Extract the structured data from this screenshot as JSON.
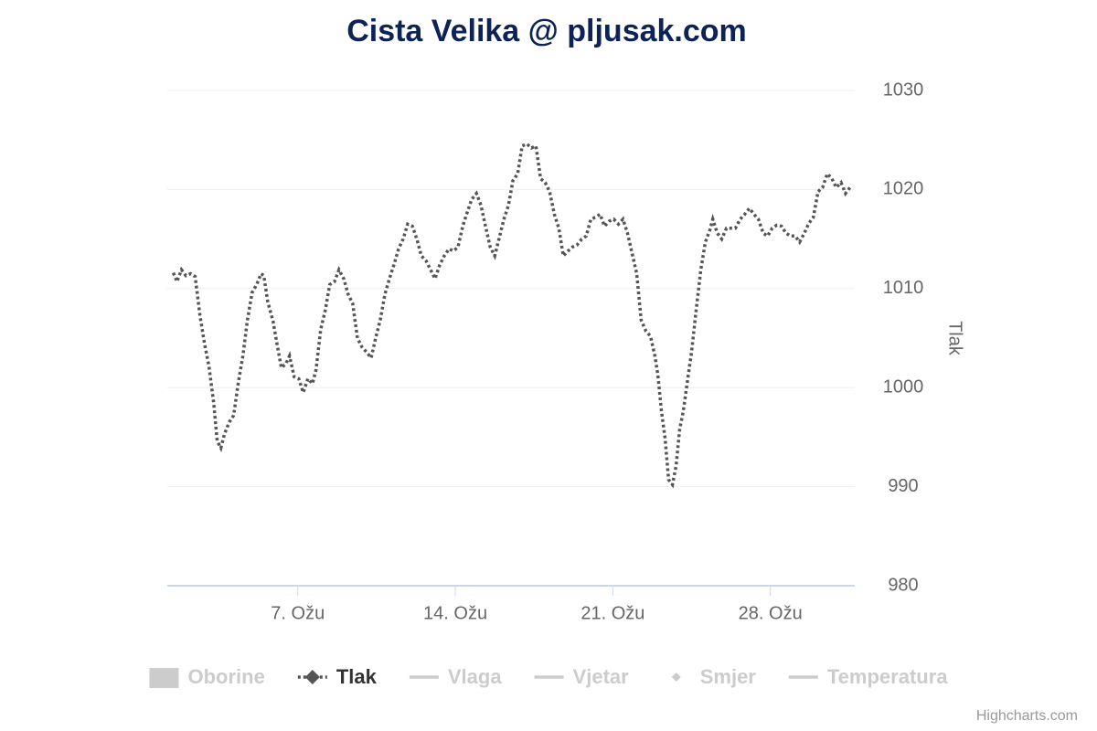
{
  "chart_data": {
    "type": "line",
    "title": "Cista Velika @ pljusak.com",
    "y_axis_title": "Tlak",
    "credits": "Highcharts.com",
    "xlim": [
      1.2,
      31.75
    ],
    "xticks": [
      {
        "value": 7,
        "label": "7. Ožu"
      },
      {
        "value": 14,
        "label": "14. Ožu"
      },
      {
        "value": 21,
        "label": "21. Ožu"
      },
      {
        "value": 28,
        "label": "28. Ožu"
      }
    ],
    "ylim": [
      980,
      1030
    ],
    "yticks": [
      980,
      990,
      1000,
      1010,
      1020,
      1030
    ],
    "grid": true,
    "x": [
      1.47,
      1.63,
      1.83,
      2.03,
      2.24,
      2.44,
      2.65,
      2.85,
      3.05,
      3.26,
      3.42,
      3.58,
      3.74,
      3.95,
      4.15,
      4.35,
      4.56,
      4.76,
      4.97,
      5.17,
      5.37,
      5.49,
      5.66,
      5.9,
      6.1,
      6.27,
      6.47,
      6.63,
      6.84,
      7.04,
      7.24,
      7.45,
      7.65,
      7.81,
      8.02,
      8.22,
      8.42,
      8.63,
      8.83,
      9.04,
      9.24,
      9.44,
      9.65,
      9.85,
      10.05,
      10.26,
      10.46,
      10.66,
      10.87,
      11.07,
      11.27,
      11.48,
      11.68,
      11.88,
      12.09,
      12.29,
      12.49,
      12.7,
      12.9,
      13.1,
      13.31,
      13.51,
      13.72,
      13.92,
      14.12,
      14.33,
      14.53,
      14.73,
      14.94,
      15.14,
      15.34,
      15.55,
      15.75,
      15.95,
      16.16,
      16.36,
      16.56,
      16.77,
      16.97,
      17.18,
      17.38,
      17.58,
      17.79,
      17.99,
      18.19,
      18.4,
      18.6,
      18.8,
      19.01,
      19.21,
      19.41,
      19.62,
      19.82,
      20.02,
      20.23,
      20.43,
      20.63,
      20.84,
      21.04,
      21.25,
      21.45,
      21.65,
      21.86,
      22.06,
      22.26,
      22.47,
      22.67,
      22.87,
      23.0,
      23.16,
      23.32,
      23.48,
      23.65,
      23.81,
      23.97,
      24.13,
      24.3,
      24.5,
      24.7,
      24.91,
      25.11,
      25.31,
      25.44,
      25.64,
      25.84,
      26.05,
      26.25,
      26.45,
      26.66,
      26.86,
      27.07,
      27.27,
      27.47,
      27.68,
      27.88,
      28.08,
      28.29,
      28.49,
      28.69,
      28.9,
      29.1,
      29.3,
      29.51,
      29.71,
      29.91,
      30.12,
      30.32,
      30.53,
      30.73,
      30.93,
      31.14,
      31.34,
      31.54
    ],
    "series": [
      {
        "name": "Oborine",
        "symbol": "column",
        "visible": false
      },
      {
        "name": "Tlak",
        "symbol": "diamond-line",
        "visible": true,
        "color": "#555555",
        "values": [
          1011.6,
          1010.7,
          1011.9,
          1011.3,
          1011.5,
          1011.2,
          1007.3,
          1004.5,
          1002.2,
          998.5,
          994.6,
          993.9,
          995.3,
          996.5,
          997.2,
          1000.4,
          1003.2,
          1006.8,
          1009.6,
          1010.4,
          1011.5,
          1011.3,
          1008.7,
          1006.7,
          1004.1,
          1002.0,
          1002.4,
          1003.2,
          1001.1,
          1000.9,
          999.5,
          1000.9,
          1000.4,
          1001.8,
          1005.9,
          1007.8,
          1010.4,
          1010.7,
          1011.9,
          1011.0,
          1009.4,
          1008.5,
          1005.0,
          1004.1,
          1003.6,
          1003.0,
          1005.0,
          1006.8,
          1009.4,
          1011.0,
          1012.4,
          1014.0,
          1015.0,
          1016.5,
          1016.3,
          1015.0,
          1013.3,
          1012.8,
          1011.9,
          1011.0,
          1012.4,
          1013.3,
          1014.0,
          1013.8,
          1014.2,
          1016.3,
          1017.7,
          1019.0,
          1019.6,
          1018.4,
          1016.3,
          1014.2,
          1013.3,
          1015.1,
          1017.0,
          1018.4,
          1020.9,
          1021.6,
          1024.4,
          1024.6,
          1024.2,
          1024.4,
          1021.1,
          1020.7,
          1019.8,
          1017.5,
          1016.1,
          1013.3,
          1013.8,
          1014.2,
          1014.4,
          1015.0,
          1015.3,
          1017.0,
          1017.2,
          1017.5,
          1016.3,
          1016.8,
          1017.0,
          1016.5,
          1017.0,
          1015.6,
          1013.5,
          1011.5,
          1006.8,
          1005.7,
          1005.2,
          1003.2,
          1001.3,
          997.6,
          994.9,
          990.7,
          990.2,
          992.1,
          995.8,
          997.6,
          1000.4,
          1003.6,
          1007.8,
          1011.9,
          1014.7,
          1015.9,
          1017.0,
          1015.6,
          1015.0,
          1016.1,
          1016.1,
          1016.1,
          1017.0,
          1017.5,
          1018.1,
          1017.5,
          1017.0,
          1015.6,
          1015.3,
          1016.1,
          1016.4,
          1016.3,
          1015.6,
          1015.3,
          1015.3,
          1014.7,
          1015.6,
          1016.6,
          1017.2,
          1019.8,
          1020.2,
          1021.6,
          1021.1,
          1020.2,
          1020.7,
          1019.6,
          1020.2
        ]
      },
      {
        "name": "Vlaga",
        "symbol": "line",
        "visible": false
      },
      {
        "name": "Vjetar",
        "symbol": "line",
        "visible": false
      },
      {
        "name": "Smjer",
        "symbol": "diamond",
        "visible": false
      },
      {
        "name": "Temperatura",
        "symbol": "line",
        "visible": false
      }
    ]
  }
}
